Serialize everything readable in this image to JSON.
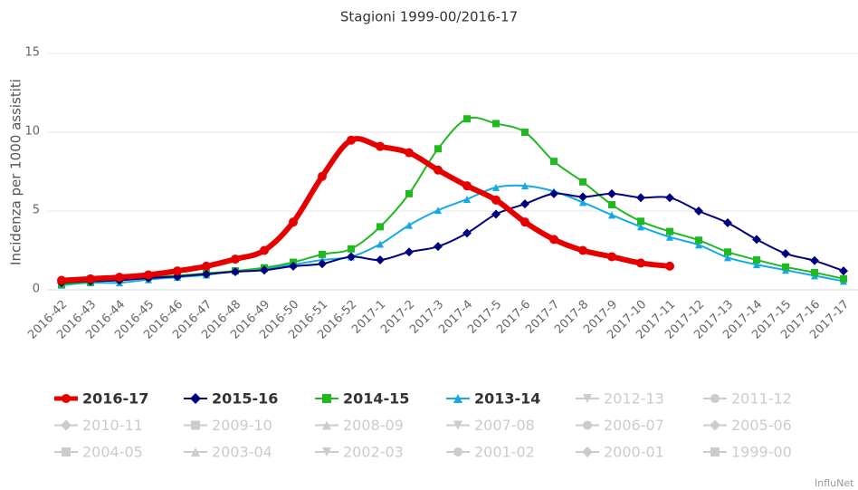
{
  "chart_data": {
    "type": "line",
    "title": "Stagioni 1999-00/2016-17",
    "y_label": "Incidenza per 1000 assistiti",
    "categories": [
      "2016-42",
      "2016-43",
      "2016-44",
      "2016-45",
      "2016-46",
      "2016-47",
      "2016-48",
      "2016-49",
      "2016-50",
      "2016-51",
      "2016-52",
      "2017-1",
      "2017-2",
      "2017-3",
      "2017-4",
      "2017-5",
      "2017-6",
      "2017-7",
      "2017-8",
      "2017-9",
      "2017-10",
      "2017-11",
      "2017-12",
      "2017-13",
      "2017-14",
      "2017-15",
      "2017-16",
      "2017-17"
    ],
    "ylim": [
      0,
      15
    ],
    "yticks": [
      0,
      5,
      10,
      15
    ],
    "grid": true,
    "smooth": true,
    "legend": "bottom",
    "series": [
      {
        "name": "2016-17",
        "color": "#e60000",
        "marker": "circle",
        "width": 6,
        "values": [
          0.6,
          0.7,
          0.8,
          0.95,
          1.2,
          1.5,
          1.95,
          2.5,
          4.3,
          7.2,
          9.5,
          9.1,
          8.7,
          7.6,
          6.6,
          5.7,
          4.3,
          3.2,
          2.5,
          2.1,
          1.7,
          1.5,
          null,
          null,
          null,
          null,
          null,
          null
        ]
      },
      {
        "name": "2015-16",
        "color": "#000080",
        "marker": "diamond",
        "width": 2,
        "values": [
          0.45,
          0.55,
          0.6,
          0.75,
          0.85,
          1.0,
          1.15,
          1.25,
          1.5,
          1.65,
          2.1,
          1.9,
          2.4,
          2.75,
          3.6,
          4.8,
          5.45,
          6.1,
          5.9,
          6.1,
          5.85,
          5.85,
          5.0,
          4.25,
          3.2,
          2.3,
          1.85,
          1.2
        ]
      },
      {
        "name": "2014-15",
        "color": "#22b822",
        "marker": "square",
        "width": 2,
        "values": [
          0.35,
          0.5,
          0.65,
          0.8,
          0.9,
          1.05,
          1.2,
          1.4,
          1.75,
          2.25,
          2.6,
          4.0,
          6.1,
          8.95,
          10.85,
          10.55,
          10.0,
          8.15,
          6.85,
          5.4,
          4.35,
          3.7,
          3.15,
          2.4,
          1.9,
          1.45,
          1.1,
          0.7
        ]
      },
      {
        "name": "2013-14",
        "color": "#13a9e6",
        "marker": "triangle",
        "width": 2,
        "values": [
          0.3,
          0.45,
          0.45,
          0.65,
          0.8,
          0.95,
          1.2,
          1.35,
          1.6,
          1.9,
          2.1,
          2.9,
          4.1,
          5.05,
          5.75,
          6.5,
          6.6,
          6.25,
          5.55,
          4.75,
          4.0,
          3.35,
          2.85,
          2.05,
          1.6,
          1.25,
          0.9,
          0.55
        ]
      }
    ],
    "hidden_series": [
      {
        "name": "2012-13",
        "marker": "triangle-down"
      },
      {
        "name": "2011-12",
        "marker": "circle"
      },
      {
        "name": "2010-11",
        "marker": "diamond"
      },
      {
        "name": "2009-10",
        "marker": "square"
      },
      {
        "name": "2008-09",
        "marker": "triangle"
      },
      {
        "name": "2007-08",
        "marker": "triangle-down"
      },
      {
        "name": "2006-07",
        "marker": "circle"
      },
      {
        "name": "2005-06",
        "marker": "diamond"
      },
      {
        "name": "2004-05",
        "marker": "square"
      },
      {
        "name": "2003-04",
        "marker": "triangle"
      },
      {
        "name": "2002-03",
        "marker": "triangle-down"
      },
      {
        "name": "2001-02",
        "marker": "circle"
      },
      {
        "name": "2000-01",
        "marker": "diamond"
      },
      {
        "name": "1999-00",
        "marker": "square"
      }
    ],
    "hidden_color": "#cccccc",
    "credits": "InfluNet"
  }
}
